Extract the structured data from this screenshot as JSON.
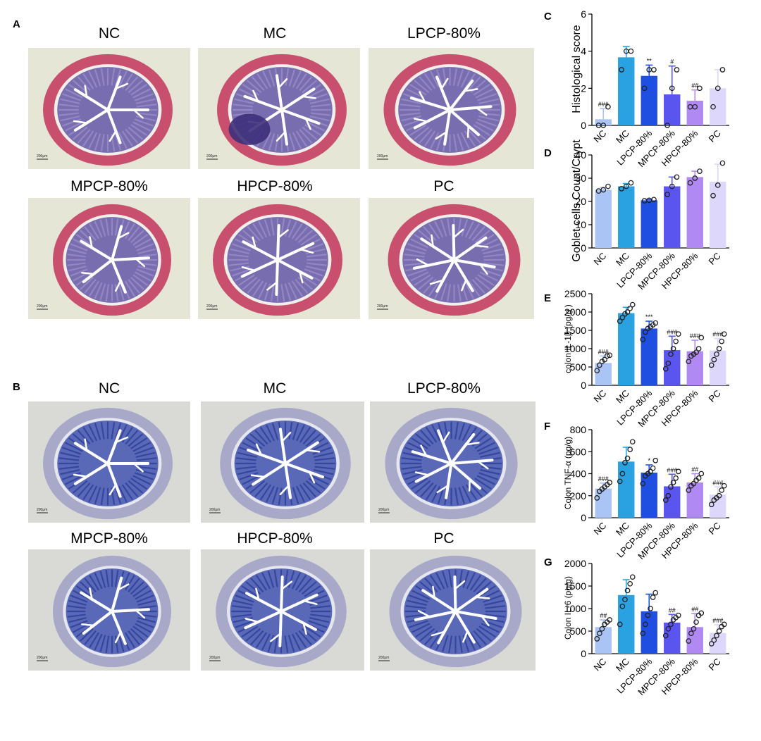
{
  "panels": {
    "A": {
      "letter": "A",
      "labels": [
        "NC",
        "MC",
        "LPCP-80%",
        "MPCP-80%",
        "HPCP-80%",
        "PC"
      ]
    },
    "B": {
      "letter": "B",
      "labels": [
        "NC",
        "MC",
        "LPCP-80%",
        "MPCP-80%",
        "HPCP-80%",
        "PC"
      ]
    }
  },
  "scale_bar_text": "200μm",
  "colors": {
    "NC": "#a9c4f5",
    "MC": "#2aa1e0",
    "LPCP-80%": "#1f4fe0",
    "MPCP-80%": "#5b55f0",
    "HPCP-80%": "#b08af2",
    "PC": "#dcd7fb",
    "he_bg": "#e6e6d6",
    "he_tissue": "#c8506e",
    "he_mucosa": "#6a5fa8",
    "ab_bg": "#d9dad6",
    "ab_tissue": "#a8a8c8",
    "ab_mucosa": "#4a5bb0"
  },
  "chart_data": [
    {
      "id": "C",
      "letter": "C",
      "type": "bar",
      "categories": [
        "NC",
        "MC",
        "LPCP-80%",
        "MPCP-80%",
        "HPCP-80%",
        "PC"
      ],
      "values": [
        0.33,
        3.67,
        2.67,
        1.67,
        1.33,
        2.0
      ],
      "errors": [
        0.58,
        0.58,
        0.58,
        1.53,
        0.58,
        1.0
      ],
      "points": [
        [
          0,
          0,
          1
        ],
        [
          3,
          4,
          4
        ],
        [
          2,
          3,
          3
        ],
        [
          0,
          2,
          3
        ],
        [
          1,
          1,
          2
        ],
        [
          1,
          2,
          3
        ]
      ],
      "annotations": [
        "###",
        "",
        "**",
        "#",
        "##",
        ""
      ],
      "ylabel": "Histological score",
      "ylim": [
        0,
        6
      ],
      "yticks": [
        0,
        2,
        4,
        6
      ]
    },
    {
      "id": "D",
      "letter": "D",
      "type": "bar",
      "categories": [
        "NC",
        "MC",
        "LPCP-80%",
        "MPCP-80%",
        "HPCP-80%",
        "PC"
      ],
      "values": [
        25.0,
        26.5,
        20.5,
        26.5,
        30.5,
        28.5
      ],
      "errors": [
        1.0,
        1.2,
        0.4,
        4.0,
        2.5,
        7.5
      ],
      "points": [
        [
          24.5,
          25.0,
          26.5
        ],
        [
          25.5,
          26.5,
          28.0
        ],
        [
          20.3,
          20.5,
          20.8
        ],
        [
          23.0,
          26.5,
          30.5
        ],
        [
          28.0,
          30.0,
          33.0
        ],
        [
          22.5,
          27.0,
          36.5
        ]
      ],
      "annotations": [
        "",
        "",
        "",
        "",
        "",
        ""
      ],
      "ylabel": "Goblet cells Count/Crypt",
      "ylim": [
        0,
        40
      ],
      "yticks": [
        0,
        10,
        20,
        30,
        40
      ]
    },
    {
      "id": "E",
      "letter": "E",
      "type": "bar",
      "categories": [
        "NC",
        "MC",
        "LPCP-80%",
        "MPCP-80%",
        "HPCP-80%",
        "PC"
      ],
      "values": [
        610,
        1970,
        1550,
        960,
        930,
        950
      ],
      "errors": [
        190,
        160,
        200,
        380,
        300,
        330
      ],
      "points": [
        [
          400,
          550,
          650,
          700,
          800,
          820
        ],
        [
          1750,
          1850,
          1950,
          2000,
          2100,
          2200
        ],
        [
          1250,
          1450,
          1550,
          1600,
          1650,
          1700
        ],
        [
          450,
          600,
          850,
          1000,
          1200,
          1400
        ],
        [
          650,
          800,
          850,
          900,
          1000,
          1300
        ],
        [
          550,
          700,
          850,
          1000,
          1200,
          1400
        ]
      ],
      "annotations": [
        "###",
        "",
        "***",
        "###",
        "###",
        "###"
      ],
      "ylabel": "colon IL-1β (pg/g )",
      "ylim": [
        0,
        2500
      ],
      "yticks": [
        0,
        500,
        1000,
        1500,
        2000,
        2500
      ]
    },
    {
      "id": "F",
      "letter": "F",
      "type": "bar",
      "categories": [
        "NC",
        "MC",
        "LPCP-80%",
        "MPCP-80%",
        "HPCP-80%",
        "PC"
      ],
      "values": [
        265,
        510,
        410,
        285,
        320,
        210
      ],
      "errors": [
        50,
        130,
        70,
        110,
        80,
        70
      ],
      "points": [
        [
          180,
          240,
          260,
          280,
          300,
          320
        ],
        [
          330,
          400,
          500,
          540,
          620,
          690
        ],
        [
          310,
          380,
          400,
          420,
          450,
          520
        ],
        [
          160,
          200,
          280,
          320,
          360,
          420
        ],
        [
          250,
          290,
          310,
          340,
          360,
          400
        ],
        [
          120,
          160,
          180,
          200,
          250,
          290
        ]
      ],
      "annotations": [
        "###",
        "",
        "*",
        "###",
        "##",
        "###"
      ],
      "ylabel": "Colon TNF-α (pg/g)",
      "ylim": [
        0,
        800
      ],
      "yticks": [
        0,
        200,
        400,
        600,
        800
      ]
    },
    {
      "id": "G",
      "letter": "G",
      "type": "bar",
      "categories": [
        "NC",
        "MC",
        "LPCP-80%",
        "MPCP-80%",
        "HPCP-80%",
        "PC"
      ],
      "values": [
        590,
        1300,
        940,
        690,
        590,
        460
      ],
      "errors": [
        160,
        340,
        380,
        180,
        300,
        180
      ],
      "points": [
        [
          330,
          450,
          550,
          650,
          700,
          750
        ],
        [
          650,
          1050,
          1200,
          1400,
          1550,
          1700
        ],
        [
          450,
          650,
          850,
          1000,
          1250,
          1350
        ],
        [
          400,
          550,
          650,
          750,
          800,
          850
        ],
        [
          280,
          450,
          550,
          700,
          850,
          900
        ],
        [
          220,
          300,
          400,
          500,
          600,
          650
        ]
      ],
      "annotations": [
        "##",
        "",
        "",
        "##",
        "##",
        "###"
      ],
      "ylabel": "Colon IL-6 (pg/g)",
      "ylim": [
        0,
        2000
      ],
      "yticks": [
        0,
        500,
        1000,
        1500,
        2000
      ]
    }
  ]
}
